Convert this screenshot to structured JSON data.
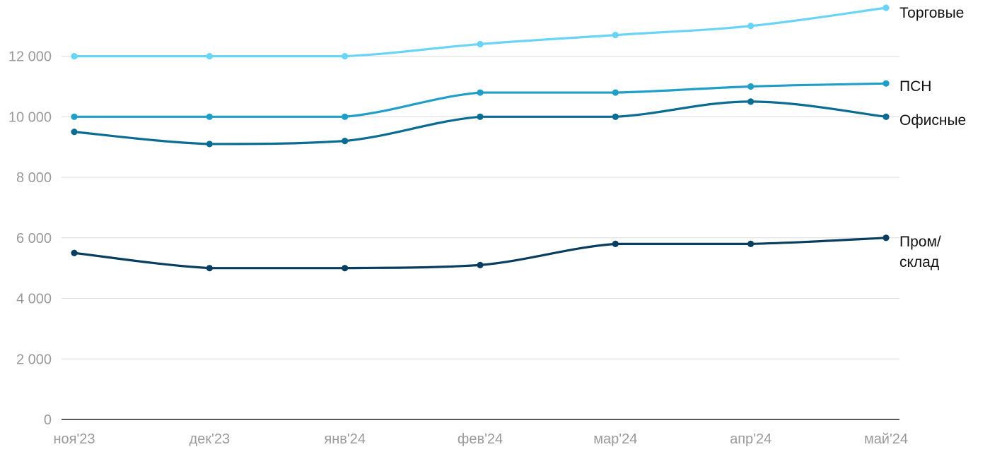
{
  "chart_data": {
    "type": "line",
    "categories": [
      "ноя'23",
      "дек'23",
      "янв'24",
      "фев'24",
      "мар'24",
      "апр'24",
      "май'24"
    ],
    "ylim": [
      0,
      13500
    ],
    "yticks": [
      0,
      2000,
      4000,
      6000,
      8000,
      10000,
      12000
    ],
    "ytick_labels": [
      "0",
      "2 000",
      "4 000",
      "6 000",
      "8 000",
      "10 000",
      "12 000"
    ],
    "grid": true,
    "legend": "end-of-line labels",
    "series": [
      {
        "name": "Торговые",
        "label_lines": [
          "Торговые"
        ],
        "color": "#6ad4f7",
        "values": [
          12000,
          12000,
          12000,
          12400,
          12700,
          13000,
          13600
        ]
      },
      {
        "name": "ПСН",
        "label_lines": [
          "ПСН"
        ],
        "color": "#1f9ec8",
        "values": [
          10000,
          10000,
          10000,
          10800,
          10800,
          11000,
          11100
        ]
      },
      {
        "name": "Офисные",
        "label_lines": [
          "Офисные"
        ],
        "color": "#0a6c92",
        "values": [
          9500,
          9100,
          9200,
          10000,
          10000,
          10500,
          10000
        ]
      },
      {
        "name": "Пром/ склад",
        "label_lines": [
          "Пром/",
          "склад"
        ],
        "color": "#073d5e",
        "values": [
          5500,
          5000,
          5000,
          5100,
          5800,
          5800,
          6000
        ]
      }
    ]
  }
}
